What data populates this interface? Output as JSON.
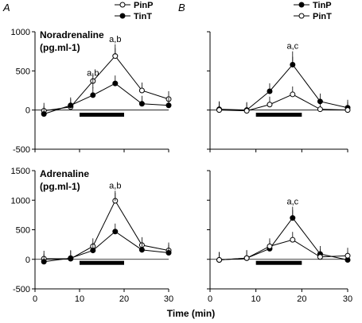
{
  "chart_data": [
    {
      "type": "line",
      "panel_label": "A",
      "ylabel_line1": "Noradrenaline",
      "ylabel_line2": "(pg.ml-1)",
      "ylim": [
        -500,
        1000
      ],
      "yticks": [
        -500,
        0,
        500,
        1000
      ],
      "xlim": [
        0,
        30
      ],
      "x": [
        2,
        8,
        13,
        18,
        24,
        30
      ],
      "legend": [
        {
          "label": "PinP",
          "marker": "open"
        },
        {
          "label": "TinT",
          "marker": "filled"
        }
      ],
      "series": [
        {
          "name": "PinP",
          "marker": "open",
          "values": [
            -10,
            40,
            370,
            690,
            250,
            140
          ]
        },
        {
          "name": "TinT",
          "marker": "filled",
          "values": [
            -50,
            60,
            190,
            340,
            80,
            60
          ]
        }
      ],
      "annotations": [
        {
          "text": "a,b",
          "x": 13,
          "y": 440
        },
        {
          "text": "a,b",
          "x": 18,
          "y": 870
        }
      ],
      "bar": {
        "x_start": 10,
        "x_end": 20,
        "y": -60
      }
    },
    {
      "type": "line",
      "panel_label": "B",
      "ylim": [
        -500,
        1000
      ],
      "xlim": [
        0,
        30
      ],
      "x": [
        2,
        8,
        13,
        18,
        24,
        30
      ],
      "legend": [
        {
          "label": "TinP",
          "marker": "filled"
        },
        {
          "label": "PinT",
          "marker": "open"
        }
      ],
      "series": [
        {
          "name": "TinP",
          "marker": "filled",
          "values": [
            10,
            0,
            240,
            580,
            110,
            30
          ]
        },
        {
          "name": "PinT",
          "marker": "open",
          "values": [
            0,
            -10,
            70,
            200,
            10,
            0
          ]
        }
      ],
      "annotations": [
        {
          "text": "a,c",
          "x": 18,
          "y": 780
        }
      ],
      "bar": {
        "x_start": 10,
        "x_end": 20,
        "y": -60
      }
    },
    {
      "type": "line",
      "panel_label": "",
      "ylabel_line1": "Adrenaline",
      "ylabel_line2": "(pg.ml-1)",
      "ylim": [
        -500,
        1500
      ],
      "yticks": [
        -500,
        0,
        500,
        1000,
        1500
      ],
      "xlim": [
        0,
        30
      ],
      "xticks": [
        0,
        10,
        20,
        30
      ],
      "x": [
        2,
        8,
        13,
        18,
        24,
        30
      ],
      "series": [
        {
          "name": "PinP",
          "marker": "open",
          "values": [
            10,
            10,
            220,
            990,
            240,
            150
          ]
        },
        {
          "name": "TinT",
          "marker": "filled",
          "values": [
            -40,
            20,
            150,
            470,
            160,
            110
          ]
        }
      ],
      "annotations": [
        {
          "text": "a,b",
          "x": 18,
          "y": 1200
        }
      ],
      "bar": {
        "x_start": 10,
        "x_end": 20,
        "y": -60
      }
    },
    {
      "type": "line",
      "panel_label": "",
      "ylim": [
        -500,
        1500
      ],
      "xlim": [
        0,
        30
      ],
      "xticks": [
        0,
        10,
        20,
        30
      ],
      "x": [
        2,
        8,
        13,
        18,
        24,
        30
      ],
      "series": [
        {
          "name": "TinP",
          "marker": "filled",
          "values": [
            -10,
            20,
            180,
            700,
            90,
            -10
          ]
        },
        {
          "name": "PinT",
          "marker": "open",
          "values": [
            -10,
            20,
            220,
            330,
            40,
            60
          ]
        }
      ],
      "annotations": [
        {
          "text": "a,c",
          "x": 18,
          "y": 930
        }
      ],
      "bar": {
        "x_start": 10,
        "x_end": 20,
        "y": -60
      }
    }
  ],
  "xlabel": "Time (min)"
}
